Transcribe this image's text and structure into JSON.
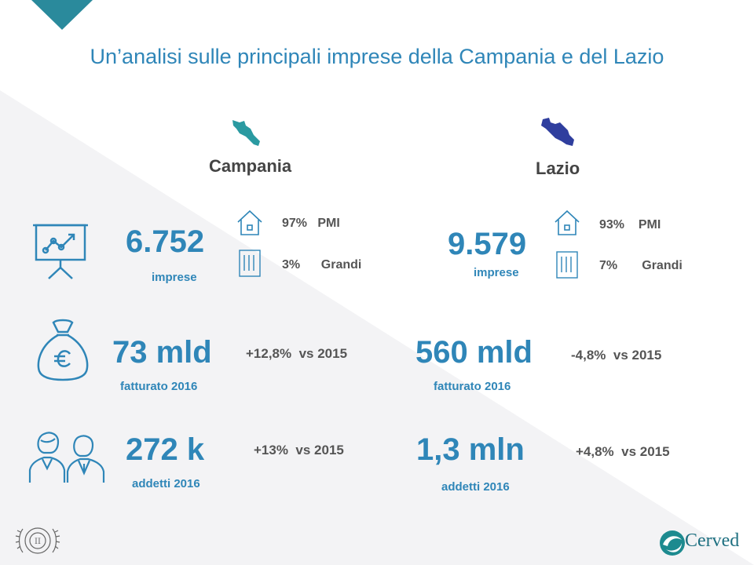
{
  "title": "Un’analisi sulle principali imprese della Campania e del Lazio",
  "campania": {
    "name": "Campania",
    "imprese": {
      "value": "6.752",
      "label": "imprese",
      "pmi_pct": "97%",
      "pmi_label": "PMI",
      "grandi_pct": "3%",
      "grandi_label": "Grandi"
    },
    "fatturato": {
      "value": "73 mld",
      "label": "fatturato 2016",
      "change": "+12,8%",
      "vs": "vs 2015"
    },
    "addetti": {
      "value": "272 k",
      "label": "addetti 2016",
      "change": "+13%",
      "vs": "vs 2015"
    }
  },
  "lazio": {
    "name": "Lazio",
    "imprese": {
      "value": "9.579",
      "label": "imprese",
      "pmi_pct": "93%",
      "pmi_label": "PMI",
      "grandi_pct": "7%",
      "grandi_label": "Grandi"
    },
    "fatturato": {
      "value": "560 mld",
      "label": "fatturato 2016",
      "change": "-4,8%",
      "vs": "vs 2015"
    },
    "addetti": {
      "value": "1,3 mln",
      "label": "addetti 2016",
      "change": "+4,8%",
      "vs": "vs 2015"
    }
  },
  "brand": {
    "name": "Cerved"
  },
  "colors": {
    "accent": "#2f86b8",
    "teal": "#2a9aa1",
    "lazio_map": "#2f3e9e",
    "text": "#444444"
  }
}
